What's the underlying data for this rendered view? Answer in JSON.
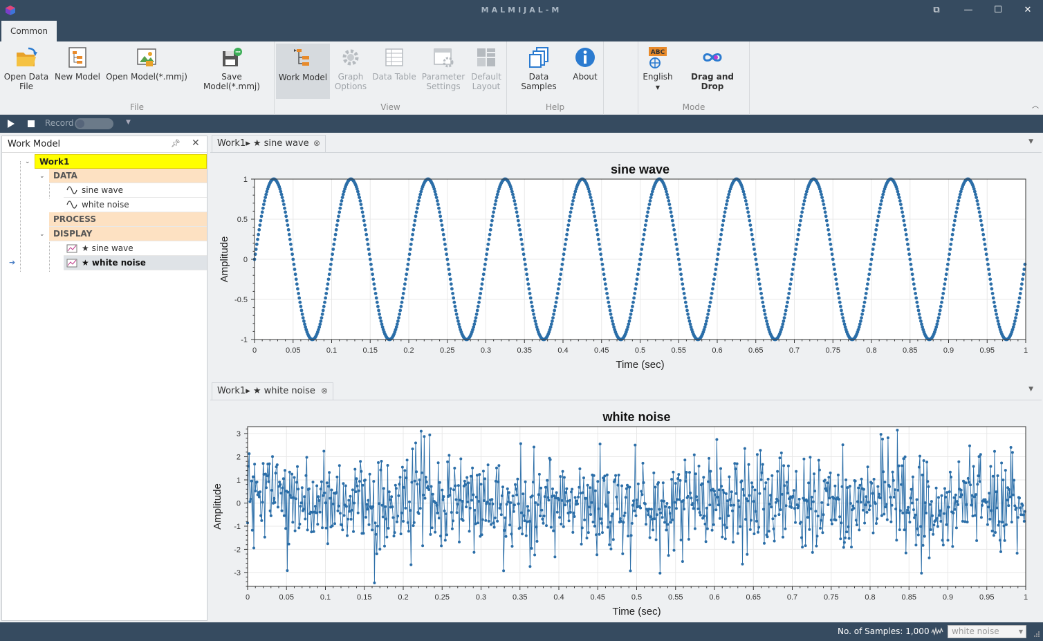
{
  "window": {
    "title": "MALMIJAL-M"
  },
  "ribbon": {
    "tab": "Common",
    "groups": {
      "file": "File",
      "view": "View",
      "help": "Help",
      "mode": "Mode"
    },
    "buttons": {
      "open_data_file": [
        "Open Data",
        "File"
      ],
      "new_model": "New Model",
      "open_model": "Open Model(*.mmj)",
      "save_model": "Save Model(*.mmj)",
      "work_model": "Work Model",
      "graph_options": [
        "Graph",
        "Options"
      ],
      "data_table": "Data Table",
      "parameter_settings": [
        "Parameter",
        "Settings"
      ],
      "default_layout": [
        "Default",
        "Layout"
      ],
      "data_samples": "Data Samples",
      "about": "About",
      "english": "English",
      "drag_and_drop": "Drag and Drop"
    },
    "english_badge": "ABC"
  },
  "record_bar": {
    "record_label": "Record"
  },
  "work_model_panel": {
    "title": "Work Model",
    "pin_icon": "pin-icon",
    "tree": {
      "work": "Work1",
      "data_group": "DATA",
      "data_items": [
        "sine wave",
        "white noise"
      ],
      "process_group": "PROCESS",
      "display_group": "DISPLAY",
      "display_items": [
        "★ sine wave",
        "★ white noise"
      ]
    }
  },
  "documents": {
    "sine_tab": "Work1▸ ★ sine wave",
    "noise_tab": "Work1▸ ★ white noise"
  },
  "chart_data": [
    {
      "type": "scatter",
      "title": "sine wave",
      "xlabel": "Time (sec)",
      "ylabel": "Amplitude",
      "xlim": [
        0,
        1
      ],
      "ylim": [
        -1,
        1
      ],
      "xticks": [
        "0",
        "0.05",
        "0.1",
        "0.15",
        "0.2",
        "0.25",
        "0.3",
        "0.35",
        "0.4",
        "0.45",
        "0.5",
        "0.55",
        "0.6",
        "0.65",
        "0.7",
        "0.75",
        "0.8",
        "0.85",
        "0.9",
        "0.95",
        "1"
      ],
      "yticks": [
        "1",
        "0.5",
        "0",
        "-0.5",
        "-1"
      ],
      "series": [
        {
          "frequency_hz": 10,
          "amplitude": 1,
          "samples": 1000,
          "color": "#2b6ea8"
        }
      ],
      "grid": true
    },
    {
      "type": "line",
      "title": "white noise",
      "xlabel": "Time (sec)",
      "ylabel": "Amplitude",
      "xlim": [
        0,
        1
      ],
      "ylim": [
        -3.6,
        3.3
      ],
      "xticks": [
        "0",
        "0.05",
        "0.1",
        "0.15",
        "0.2",
        "0.25",
        "0.3",
        "0.35",
        "0.4",
        "0.45",
        "0.5",
        "0.55",
        "0.6",
        "0.65",
        "0.7",
        "0.75",
        "0.8",
        "0.85",
        "0.9",
        "0.95",
        "1"
      ],
      "yticks": [
        "3",
        "2",
        "1",
        "0",
        "-1",
        "-2",
        "-3"
      ],
      "series": [
        {
          "distribution": "gaussian",
          "mean": 0,
          "std": 1,
          "samples": 1000,
          "color": "#2b6ea8"
        }
      ],
      "grid": true
    }
  ],
  "status": {
    "samples_label": "No. of Samples: 1,000",
    "series_select": "white noise"
  }
}
